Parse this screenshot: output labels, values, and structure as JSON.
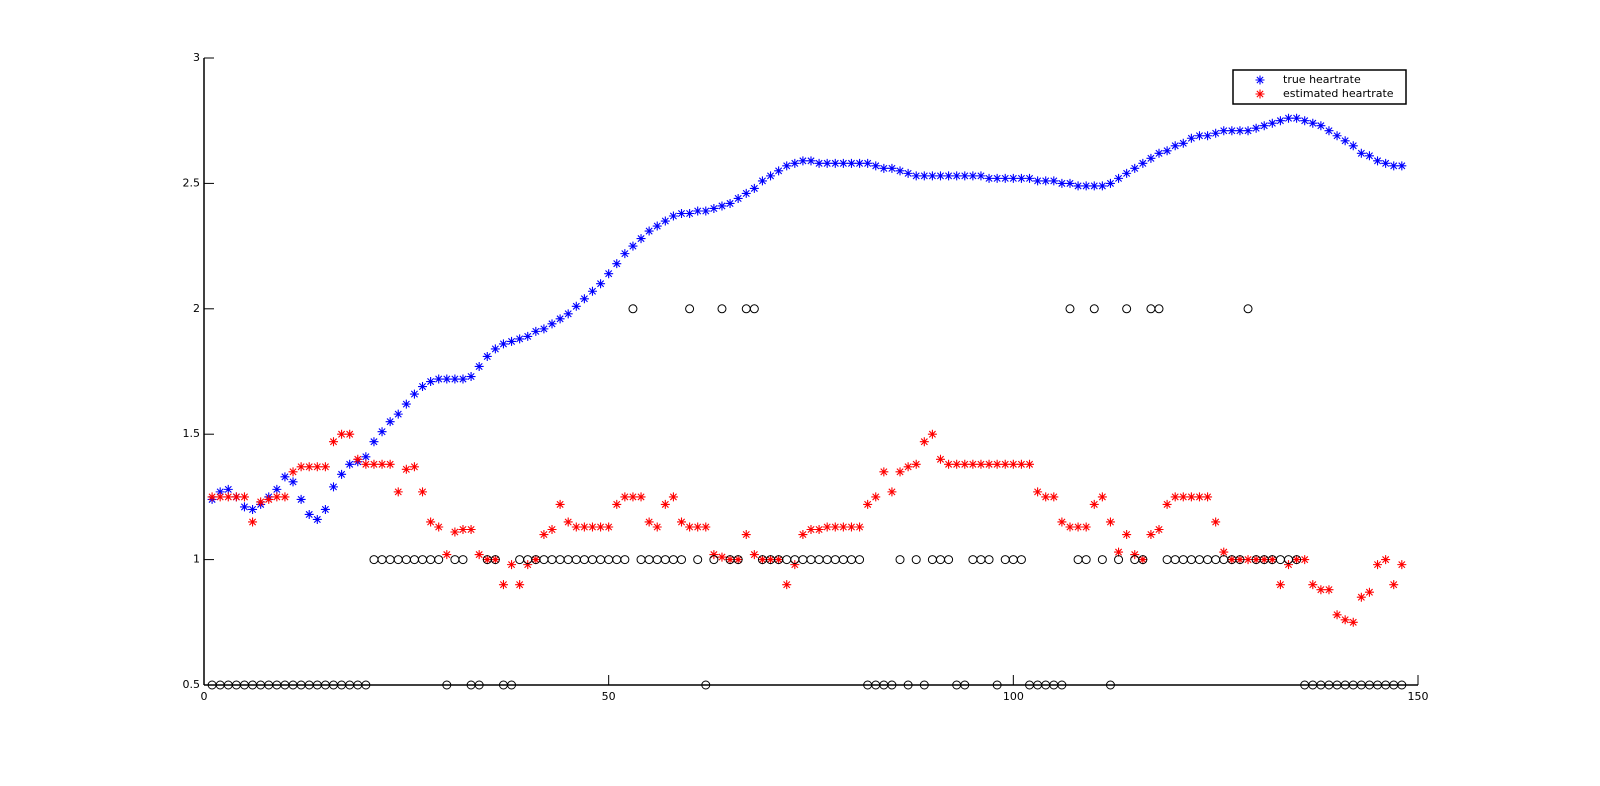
{
  "chart_data": {
    "type": "scatter",
    "x": [
      1,
      2,
      3,
      4,
      5,
      6,
      7,
      8,
      9,
      10,
      11,
      12,
      13,
      14,
      15,
      16,
      17,
      18,
      19,
      20,
      21,
      22,
      23,
      24,
      25,
      26,
      27,
      28,
      29,
      30,
      31,
      32,
      33,
      34,
      35,
      36,
      37,
      38,
      39,
      40,
      41,
      42,
      43,
      44,
      45,
      46,
      47,
      48,
      49,
      50,
      51,
      52,
      53,
      54,
      55,
      56,
      57,
      58,
      59,
      60,
      61,
      62,
      63,
      64,
      65,
      66,
      67,
      68,
      69,
      70,
      71,
      72,
      73,
      74,
      75,
      76,
      77,
      78,
      79,
      80,
      81,
      82,
      83,
      84,
      85,
      86,
      87,
      88,
      89,
      90,
      91,
      92,
      93,
      94,
      95,
      96,
      97,
      98,
      99,
      100,
      101,
      102,
      103,
      104,
      105,
      106,
      107,
      108,
      109,
      110,
      111,
      112,
      113,
      114,
      115,
      116,
      117,
      118,
      119,
      120,
      121,
      122,
      123,
      124,
      125,
      126,
      127,
      128,
      129,
      130,
      131,
      132,
      133,
      134,
      135,
      136,
      137,
      138,
      139,
      140,
      141,
      142,
      143,
      144,
      145,
      146,
      147,
      148
    ],
    "series": [
      {
        "name": "true heartrate",
        "color": "#0000ff",
        "marker": "asterisk",
        "values": [
          1.24,
          1.27,
          1.28,
          1.25,
          1.21,
          1.2,
          1.22,
          1.25,
          1.28,
          1.33,
          1.31,
          1.24,
          1.18,
          1.16,
          1.2,
          1.29,
          1.34,
          1.38,
          1.39,
          1.41,
          1.47,
          1.51,
          1.55,
          1.58,
          1.62,
          1.66,
          1.69,
          1.71,
          1.72,
          1.72,
          1.72,
          1.72,
          1.73,
          1.77,
          1.81,
          1.84,
          1.86,
          1.87,
          1.88,
          1.89,
          1.91,
          1.92,
          1.94,
          1.96,
          1.98,
          2.01,
          2.04,
          2.07,
          2.1,
          2.14,
          2.18,
          2.22,
          2.25,
          2.28,
          2.31,
          2.33,
          2.35,
          2.37,
          2.38,
          2.38,
          2.39,
          2.39,
          2.4,
          2.41,
          2.42,
          2.44,
          2.46,
          2.48,
          2.51,
          2.53,
          2.55,
          2.57,
          2.58,
          2.59,
          2.59,
          2.58,
          2.58,
          2.58,
          2.58,
          2.58,
          2.58,
          2.58,
          2.57,
          2.56,
          2.56,
          2.55,
          2.54,
          2.53,
          2.53,
          2.53,
          2.53,
          2.53,
          2.53,
          2.53,
          2.53,
          2.53,
          2.52,
          2.52,
          2.52,
          2.52,
          2.52,
          2.52,
          2.51,
          2.51,
          2.51,
          2.5,
          2.5,
          2.49,
          2.49,
          2.49,
          2.49,
          2.5,
          2.52,
          2.54,
          2.56,
          2.58,
          2.6,
          2.62,
          2.63,
          2.65,
          2.66,
          2.68,
          2.69,
          2.69,
          2.7,
          2.71,
          2.71,
          2.71,
          2.71,
          2.72,
          2.73,
          2.74,
          2.75,
          2.76,
          2.76,
          2.75,
          2.74,
          2.73,
          2.71,
          2.69,
          2.67,
          2.65,
          2.62,
          2.61,
          2.59,
          2.58,
          2.57,
          2.57
        ]
      },
      {
        "name": "estimated heartrate",
        "color": "#ff0000",
        "marker": "asterisk",
        "values": [
          1.25,
          1.25,
          1.25,
          1.25,
          1.25,
          1.15,
          1.23,
          1.24,
          1.25,
          1.25,
          1.35,
          1.37,
          1.37,
          1.37,
          1.37,
          1.47,
          1.5,
          1.5,
          1.4,
          1.38,
          1.38,
          1.38,
          1.38,
          1.27,
          1.36,
          1.37,
          1.27,
          1.15,
          1.13,
          1.02,
          1.11,
          1.12,
          1.12,
          1.02,
          1.0,
          1.0,
          0.9,
          0.98,
          0.9,
          0.98,
          1.0,
          1.1,
          1.12,
          1.22,
          1.15,
          1.13,
          1.13,
          1.13,
          1.13,
          1.13,
          1.22,
          1.25,
          1.25,
          1.25,
          1.15,
          1.13,
          1.22,
          1.25,
          1.15,
          1.13,
          1.13,
          1.13,
          1.02,
          1.01,
          1.0,
          1.0,
          1.1,
          1.02,
          1.0,
          1.0,
          1.0,
          0.9,
          0.98,
          1.1,
          1.12,
          1.12,
          1.13,
          1.13,
          1.13,
          1.13,
          1.13,
          1.22,
          1.25,
          1.35,
          1.27,
          1.35,
          1.37,
          1.38,
          1.47,
          1.5,
          1.4,
          1.38,
          1.38,
          1.38,
          1.38,
          1.38,
          1.38,
          1.38,
          1.38,
          1.38,
          1.38,
          1.38,
          1.27,
          1.25,
          1.25,
          1.15,
          1.13,
          1.13,
          1.13,
          1.22,
          1.25,
          1.15,
          1.03,
          1.1,
          1.02,
          1.0,
          1.1,
          1.12,
          1.22,
          1.25,
          1.25,
          1.25,
          1.25,
          1.25,
          1.15,
          1.03,
          1.0,
          1.0,
          1.0,
          1.0,
          1.0,
          1.0,
          0.9,
          0.98,
          1.0,
          1.0,
          0.9,
          0.88,
          0.88,
          0.78,
          0.76,
          0.75,
          0.85,
          0.87,
          0.98,
          1.0,
          0.9,
          0.98
        ]
      },
      {
        "color": "#000000",
        "marker": "circle",
        "values": [
          0.5,
          0.5,
          0.5,
          0.5,
          0.5,
          0.5,
          0.5,
          0.5,
          0.5,
          0.5,
          0.5,
          0.5,
          0.5,
          0.5,
          0.5,
          0.5,
          0.5,
          0.5,
          0.5,
          0.5,
          1,
          1,
          1,
          1,
          1,
          1,
          1,
          1,
          1,
          0.5,
          1,
          1,
          0.5,
          0.5,
          1,
          1,
          0.5,
          0.5,
          1,
          1,
          1,
          1,
          1,
          1,
          1,
          1,
          1,
          1,
          1,
          1,
          1,
          1,
          2,
          1,
          1,
          1,
          1,
          1,
          1,
          2,
          1,
          0.5,
          1,
          2,
          1,
          1,
          2,
          2,
          1,
          1,
          1,
          1,
          1,
          1,
          1,
          1,
          1,
          1,
          1,
          1,
          1,
          0.5,
          0.5,
          0.5,
          0.5,
          1,
          0.5,
          1,
          0.5,
          1,
          1,
          1,
          0.5,
          0.5,
          1,
          1,
          1,
          0.5,
          1,
          1,
          1,
          0.5,
          0.5,
          0.5,
          0.5,
          0.5,
          2,
          1,
          1,
          2,
          1,
          0.5,
          1,
          2,
          1,
          1,
          2,
          2,
          1,
          1,
          1,
          1,
          1,
          1,
          1,
          1,
          1,
          1,
          2,
          1,
          1,
          1,
          1,
          1,
          1,
          0.5,
          0.5,
          0.5,
          0.5,
          0.5,
          0.5,
          0.5,
          0.5,
          0.5,
          0.5,
          0.5,
          0.5,
          0.5
        ]
      }
    ],
    "xlim": [
      0,
      150
    ],
    "ylim": [
      0.5,
      3
    ],
    "xticks": [
      0,
      50,
      100,
      150
    ],
    "yticks": [
      0.5,
      1,
      1.5,
      2,
      2.5,
      3
    ],
    "legend": "upper right"
  }
}
